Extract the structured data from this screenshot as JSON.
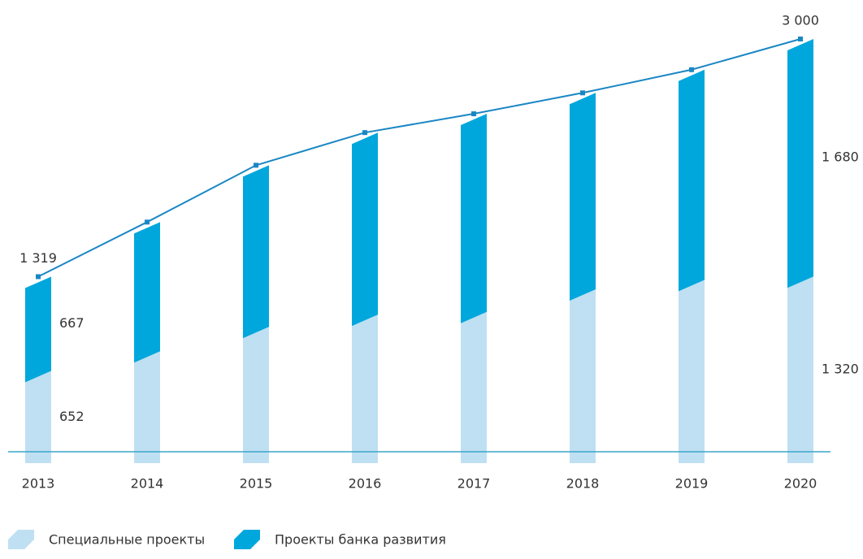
{
  "chart_data": {
    "type": "stacked-bar-line",
    "categories": [
      "2013",
      "2014",
      "2015",
      "2016",
      "2017",
      "2018",
      "2019",
      "2020"
    ],
    "series": [
      {
        "name": "Специальные проекты",
        "color": "#bfe0f2",
        "values": [
          652,
          791,
          964,
          1050,
          1070,
          1229,
          1296,
          1320
        ],
        "value_labels": [
          "652",
          null,
          null,
          null,
          null,
          null,
          null,
          "1 320"
        ]
      },
      {
        "name": "Проекты банка развития",
        "color": "#00a7dc",
        "values": [
          667,
          914,
          1143,
          1288,
          1401,
          1390,
          1487,
          1680
        ],
        "value_labels": [
          "667",
          null,
          null,
          null,
          null,
          null,
          null,
          "1 680"
        ]
      }
    ],
    "line": {
      "color": "#1a87c4",
      "values": [
        1319,
        1705,
        2107,
        2338,
        2471,
        2619,
        2783,
        3000
      ],
      "value_labels": [
        "1 319",
        null,
        null,
        null,
        null,
        null,
        null,
        "3 000"
      ]
    },
    "ylim": [
      0,
      3000
    ]
  }
}
